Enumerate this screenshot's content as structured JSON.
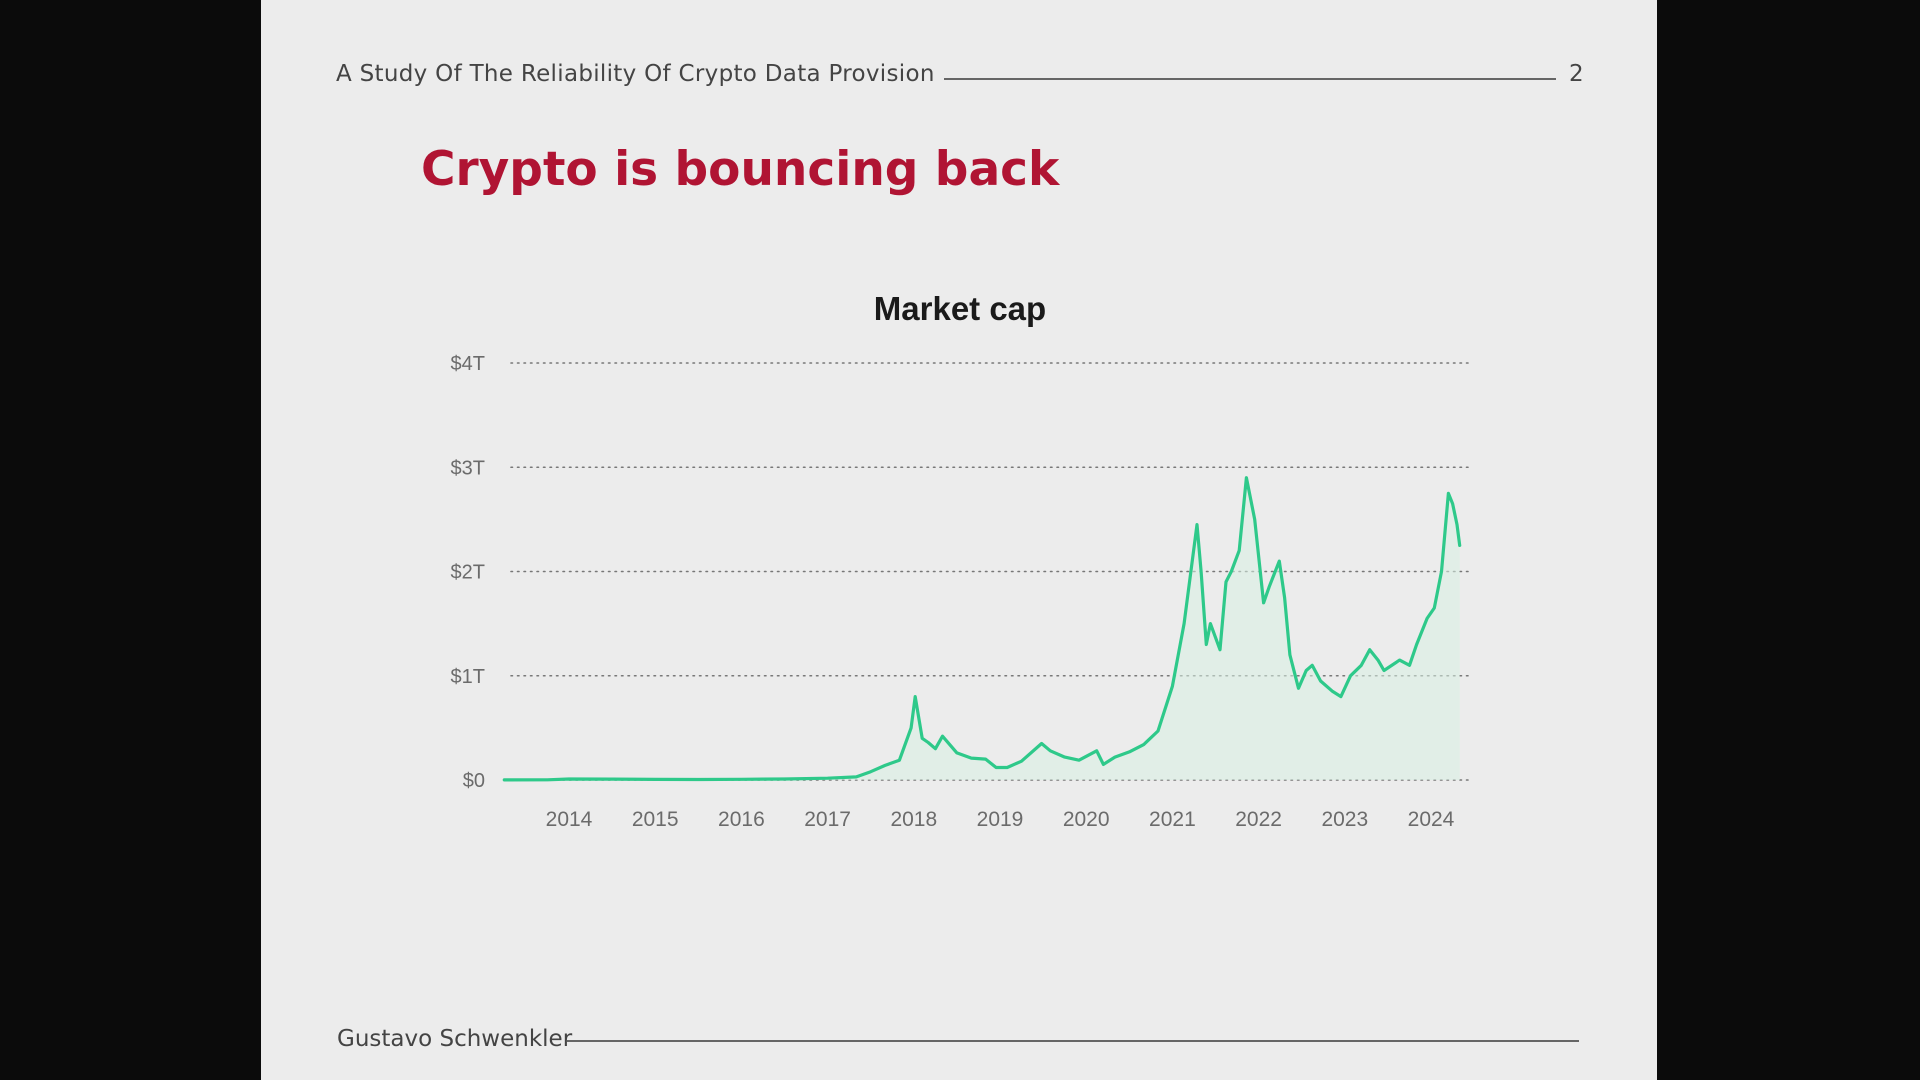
{
  "slide": {
    "header_title": "A Study Of The Reliability Of Crypto Data Provision",
    "page_number": "2",
    "title": "Crypto is bouncing back",
    "footer_author": "Gustavo Schwenkler"
  },
  "colors": {
    "title": "#b01433",
    "line": "#2ec98a",
    "area": "#d8f1e4",
    "grid": "#777777",
    "background": "#ececec"
  },
  "chart_data": {
    "type": "area",
    "title": "Market cap",
    "xlabel": "",
    "ylabel": "",
    "x_ticks": [
      "2014",
      "2015",
      "2016",
      "2017",
      "2018",
      "2019",
      "2020",
      "2021",
      "2022",
      "2023",
      "2024"
    ],
    "y_ticks": [
      "$0",
      "$1T",
      "$2T",
      "$3T",
      "$4T"
    ],
    "ylim": [
      0,
      4
    ],
    "y_unit": "trillion USD",
    "grid": "horizontal dotted",
    "legend": "none",
    "series": [
      {
        "x": [
          "2013-04",
          "2013-10",
          "2014-01",
          "2014-07",
          "2015-01",
          "2015-07",
          "2016-01",
          "2016-07",
          "2017-01",
          "2017-05",
          "2017-07",
          "2017-09",
          "2017-11",
          "2017-12-20",
          "2018-01-07",
          "2018-02-06",
          "2018-03-01",
          "2018-04-01",
          "2018-05-01",
          "2018-07-01",
          "2018-09-01",
          "2018-11-01",
          "2018-12-15",
          "2019-02-01",
          "2019-04-01",
          "2019-06-25",
          "2019-08-01",
          "2019-10-01",
          "2019-12-01",
          "2020-02-15",
          "2020-03-13",
          "2020-05-01",
          "2020-07-01",
          "2020-09-01",
          "2020-11-01",
          "2021-01-01",
          "2021-02-20",
          "2021-04-14",
          "2021-05-01",
          "2021-05-23",
          "2021-06-10",
          "2021-07-20",
          "2021-08-15",
          "2021-09-07",
          "2021-10-10",
          "2021-11-10",
          "2021-12-15",
          "2022-01-22",
          "2022-02-15",
          "2022-03-28",
          "2022-04-20",
          "2022-05-12",
          "2022-06-18",
          "2022-07-20",
          "2022-08-15",
          "2022-09-20",
          "2022-11-10",
          "2022-12-15",
          "2023-01-25",
          "2023-03-10",
          "2023-04-15",
          "2023-05-20",
          "2023-06-15",
          "2023-08-20",
          "2023-10-01",
          "2023-11-01",
          "2023-12-15",
          "2024-01-15",
          "2024-02-15",
          "2024-03-14",
          "2024-04-01",
          "2024-04-20",
          "2024-05-01"
        ],
        "y": [
          0.001,
          0.002,
          0.01,
          0.009,
          0.006,
          0.005,
          0.007,
          0.01,
          0.017,
          0.03,
          0.08,
          0.14,
          0.19,
          0.5,
          0.8,
          0.4,
          0.36,
          0.3,
          0.42,
          0.26,
          0.21,
          0.2,
          0.12,
          0.12,
          0.18,
          0.35,
          0.28,
          0.22,
          0.19,
          0.28,
          0.15,
          0.22,
          0.27,
          0.34,
          0.47,
          0.9,
          1.5,
          2.45,
          2.0,
          1.3,
          1.5,
          1.25,
          1.9,
          2.0,
          2.2,
          2.9,
          2.5,
          1.7,
          1.85,
          2.1,
          1.75,
          1.2,
          0.88,
          1.05,
          1.1,
          0.95,
          0.85,
          0.8,
          1.0,
          1.1,
          1.25,
          1.15,
          1.05,
          1.15,
          1.1,
          1.3,
          1.55,
          1.65,
          2.0,
          2.75,
          2.65,
          2.45,
          2.25
        ]
      }
    ]
  }
}
